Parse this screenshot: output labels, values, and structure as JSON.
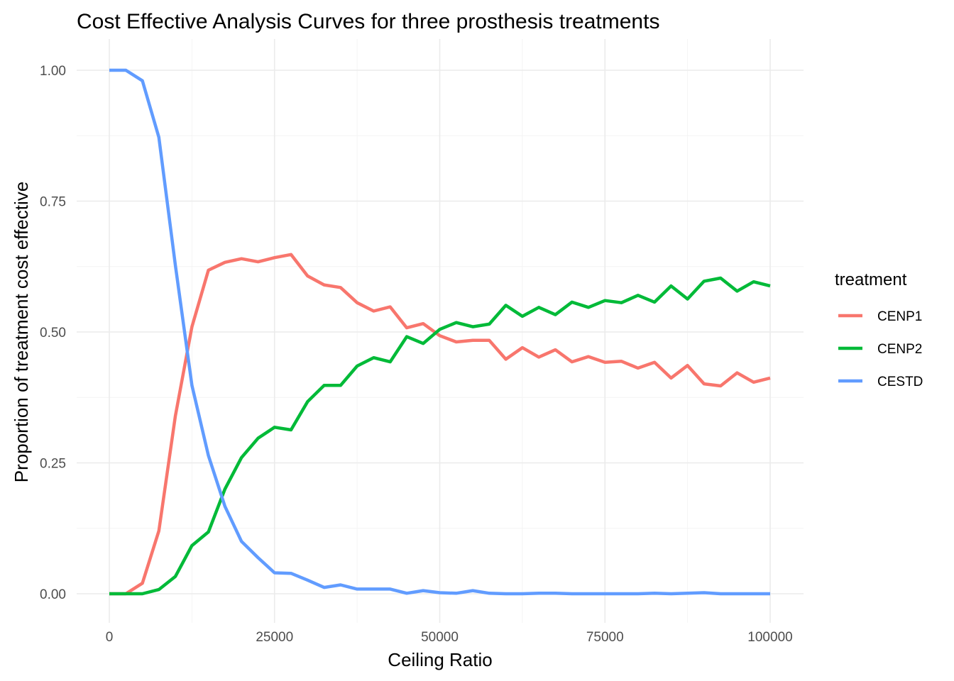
{
  "chart_data": {
    "type": "line",
    "title": "Cost Effective Analysis Curves for three prosthesis treatments",
    "xlabel": "Ceiling Ratio",
    "ylabel": "Proportion of treatment cost effective",
    "xlim": [
      0,
      100000
    ],
    "ylim": [
      0,
      1
    ],
    "x_ticks": [
      0,
      25000,
      50000,
      75000,
      100000
    ],
    "x_tick_labels": [
      "0",
      "25000",
      "50000",
      "75000",
      "100000"
    ],
    "y_ticks": [
      0,
      0.25,
      0.5,
      0.75,
      1
    ],
    "y_tick_labels": [
      "0.00",
      "0.25",
      "0.50",
      "0.75",
      "1.00"
    ],
    "grid": true,
    "legend": {
      "title": "treatment",
      "position": "right"
    },
    "x": [
      0,
      2500,
      5000,
      7500,
      10000,
      12500,
      15000,
      17500,
      20000,
      22500,
      25000,
      27500,
      30000,
      32500,
      35000,
      37500,
      40000,
      42500,
      45000,
      47500,
      50000,
      52500,
      55000,
      57500,
      60000,
      62500,
      65000,
      67500,
      70000,
      72500,
      75000,
      77500,
      80000,
      82500,
      85000,
      87500,
      90000,
      92500,
      95000,
      97500,
      100000
    ],
    "series": [
      {
        "name": "CENP1",
        "color": "#F8766D",
        "values": [
          0.0,
          0.0,
          0.02,
          0.12,
          0.34,
          0.51,
          0.618,
          0.633,
          0.64,
          0.634,
          0.642,
          0.648,
          0.607,
          0.59,
          0.585,
          0.556,
          0.54,
          0.548,
          0.508,
          0.516,
          0.493,
          0.481,
          0.484,
          0.484,
          0.448,
          0.47,
          0.452,
          0.466,
          0.443,
          0.453,
          0.442,
          0.444,
          0.431,
          0.442,
          0.412,
          0.436,
          0.401,
          0.397,
          0.422,
          0.404,
          0.412
        ]
      },
      {
        "name": "CENP2",
        "color": "#00BA38",
        "values": [
          0.0,
          0.0,
          0.0,
          0.008,
          0.033,
          0.092,
          0.118,
          0.2,
          0.26,
          0.297,
          0.318,
          0.313,
          0.367,
          0.398,
          0.398,
          0.435,
          0.451,
          0.443,
          0.491,
          0.478,
          0.505,
          0.518,
          0.51,
          0.515,
          0.551,
          0.53,
          0.547,
          0.533,
          0.557,
          0.547,
          0.56,
          0.556,
          0.57,
          0.557,
          0.588,
          0.563,
          0.597,
          0.603,
          0.578,
          0.596,
          0.588
        ]
      },
      {
        "name": "CESTD",
        "color": "#619CFF",
        "values": [
          1.0,
          1.0,
          0.98,
          0.872,
          0.627,
          0.398,
          0.264,
          0.167,
          0.1,
          0.069,
          0.04,
          0.039,
          0.026,
          0.012,
          0.017,
          0.009,
          0.009,
          0.009,
          0.001,
          0.006,
          0.002,
          0.001,
          0.006,
          0.001,
          0.0,
          0.0,
          0.001,
          0.001,
          0.0,
          0.0,
          0.0,
          0.0,
          0.0,
          0.001,
          0.0,
          0.001,
          0.002,
          0.0,
          0.0,
          0.0,
          0.0
        ]
      }
    ]
  }
}
